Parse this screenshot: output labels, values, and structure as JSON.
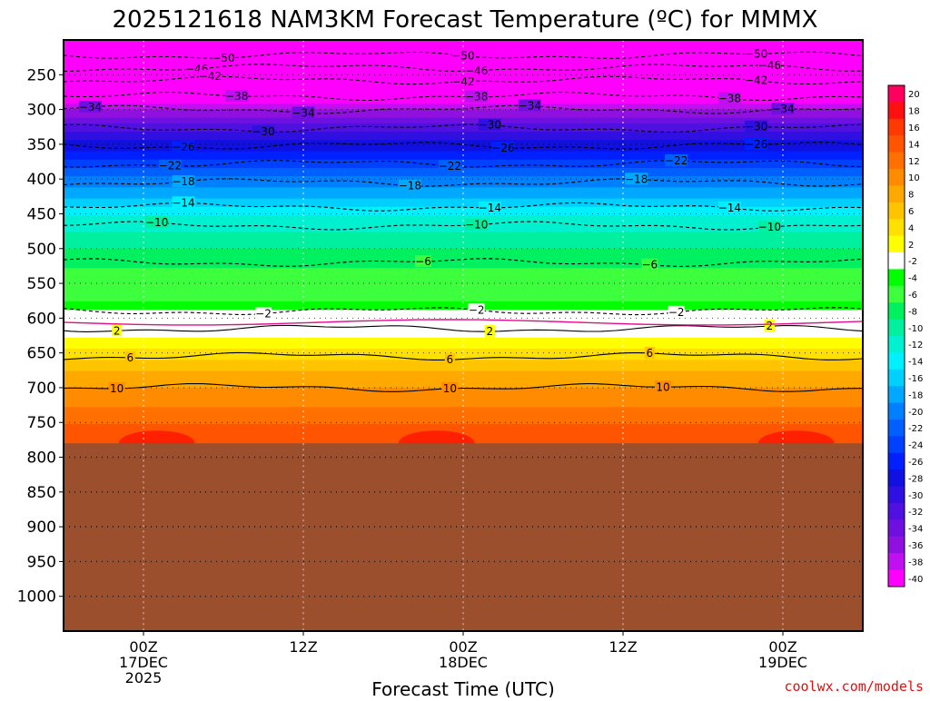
{
  "chart_data": {
    "type": "heatmap",
    "title": "2025121618 NAM3KM Forecast Temperature (ºC) for MMMX",
    "xlabel": "Forecast Time (UTC)",
    "ylabel": "",
    "credit": "coolwx.com/models",
    "x_ticks": [
      {
        "hour": 6,
        "lines": [
          "00Z",
          "17DEC",
          "2025"
        ]
      },
      {
        "hour": 18,
        "lines": [
          "12Z"
        ]
      },
      {
        "hour": 30,
        "lines": [
          "00Z",
          "18DEC"
        ]
      },
      {
        "hour": 42,
        "lines": [
          "12Z"
        ]
      },
      {
        "hour": 54,
        "lines": [
          "00Z",
          "19DEC"
        ]
      }
    ],
    "x_range_hours": [
      0,
      60
    ],
    "y_ticks_hpa": [
      250,
      300,
      350,
      400,
      450,
      500,
      550,
      600,
      650,
      700,
      750,
      800,
      850,
      900,
      950,
      1000
    ],
    "y_range_hpa": [
      200,
      1050
    ],
    "surface_pressure_hpa": 780,
    "colorbar_labels": [
      "20",
      "18",
      "16",
      "14",
      "12",
      "10",
      "8",
      "6",
      "4",
      "2",
      "-2",
      "-4",
      "-6",
      "-8",
      "-10",
      "-12",
      "-14",
      "-16",
      "-18",
      "-20",
      "-22",
      "-24",
      "-26",
      "-28",
      "-30",
      "-32",
      "-34",
      "-36",
      "-38",
      "-40"
    ],
    "colorbar_colors": [
      "#ff0060",
      "#ff1010",
      "#ff3a00",
      "#ff5500",
      "#ff7000",
      "#ff8c00",
      "#ffa800",
      "#ffc400",
      "#ffe000",
      "#ffff00",
      "#ffffff",
      "#00ff00",
      "#3dff3d",
      "#00f060",
      "#00f0a0",
      "#00f0d0",
      "#00f0ff",
      "#00d0ff",
      "#00a8ff",
      "#0080ff",
      "#0060ff",
      "#0040ff",
      "#0020ff",
      "#1010e0",
      "#3010e0",
      "#5010e0",
      "#7010e0",
      "#9010e0",
      "#c010f0",
      "#ff00ff"
    ],
    "temperature_profile": [
      {
        "p": 200,
        "t": -56
      },
      {
        "p": 225,
        "t": -52
      },
      {
        "p": 250,
        "t": -46
      },
      {
        "p": 275,
        "t": -42
      },
      {
        "p": 300,
        "t": -36
      },
      {
        "p": 325,
        "t": -31
      },
      {
        "p": 350,
        "t": -27
      },
      {
        "p": 375,
        "t": -23
      },
      {
        "p": 400,
        "t": -19
      },
      {
        "p": 425,
        "t": -16
      },
      {
        "p": 450,
        "t": -12
      },
      {
        "p": 475,
        "t": -10
      },
      {
        "p": 500,
        "t": -8
      },
      {
        "p": 525,
        "t": -6
      },
      {
        "p": 550,
        "t": -5
      },
      {
        "p": 575,
        "t": -4
      },
      {
        "p": 600,
        "t": 0
      },
      {
        "p": 625,
        "t": 2
      },
      {
        "p": 650,
        "t": 5
      },
      {
        "p": 675,
        "t": 8
      },
      {
        "p": 700,
        "t": 10
      },
      {
        "p": 725,
        "t": 12
      },
      {
        "p": 750,
        "t": 14
      },
      {
        "p": 780,
        "t": 16
      }
    ],
    "contours": [
      {
        "label": "-50",
        "p": 222,
        "dash": true,
        "label_hours": [
          12,
          30,
          52
        ]
      },
      {
        "label": "-46",
        "p": 240,
        "dash": true,
        "label_hours": [
          10,
          31,
          53
        ]
      },
      {
        "label": "-42",
        "p": 258,
        "dash": true,
        "label_hours": [
          11,
          30,
          52
        ]
      },
      {
        "label": "-38",
        "p": 281,
        "dash": true,
        "label_hours": [
          13,
          31,
          50
        ]
      },
      {
        "label": "-34",
        "p": 300,
        "dash": true,
        "label_hours": [
          2,
          18,
          35,
          54
        ]
      },
      {
        "label": "-30",
        "p": 327,
        "dash": true,
        "label_hours": [
          15,
          32,
          52
        ]
      },
      {
        "label": "-26",
        "p": 352,
        "dash": true,
        "label_hours": [
          9,
          33,
          52
        ]
      },
      {
        "label": "-22",
        "p": 378,
        "dash": true,
        "label_hours": [
          8,
          29,
          46
        ]
      },
      {
        "label": "-18",
        "p": 405,
        "dash": true,
        "label_hours": [
          9,
          26,
          43
        ]
      },
      {
        "label": "-14",
        "p": 440,
        "dash": true,
        "label_hours": [
          9,
          32,
          50
        ]
      },
      {
        "label": "-10",
        "p": 467,
        "dash": true,
        "label_hours": [
          7,
          31,
          53
        ]
      },
      {
        "label": "-6",
        "p": 520,
        "dash": true,
        "label_hours": [
          27,
          44
        ]
      },
      {
        "label": "-2",
        "p": 590,
        "dash": true,
        "label_hours": [
          15,
          31,
          46
        ]
      },
      {
        "label": "2",
        "p": 615,
        "dash": false,
        "label_hours": [
          4,
          32,
          53
        ]
      },
      {
        "label": "6",
        "p": 655,
        "dash": false,
        "label_hours": [
          5,
          29,
          44
        ]
      },
      {
        "label": "10",
        "p": 700,
        "dash": false,
        "label_hours": [
          4,
          29,
          45
        ]
      }
    ]
  }
}
